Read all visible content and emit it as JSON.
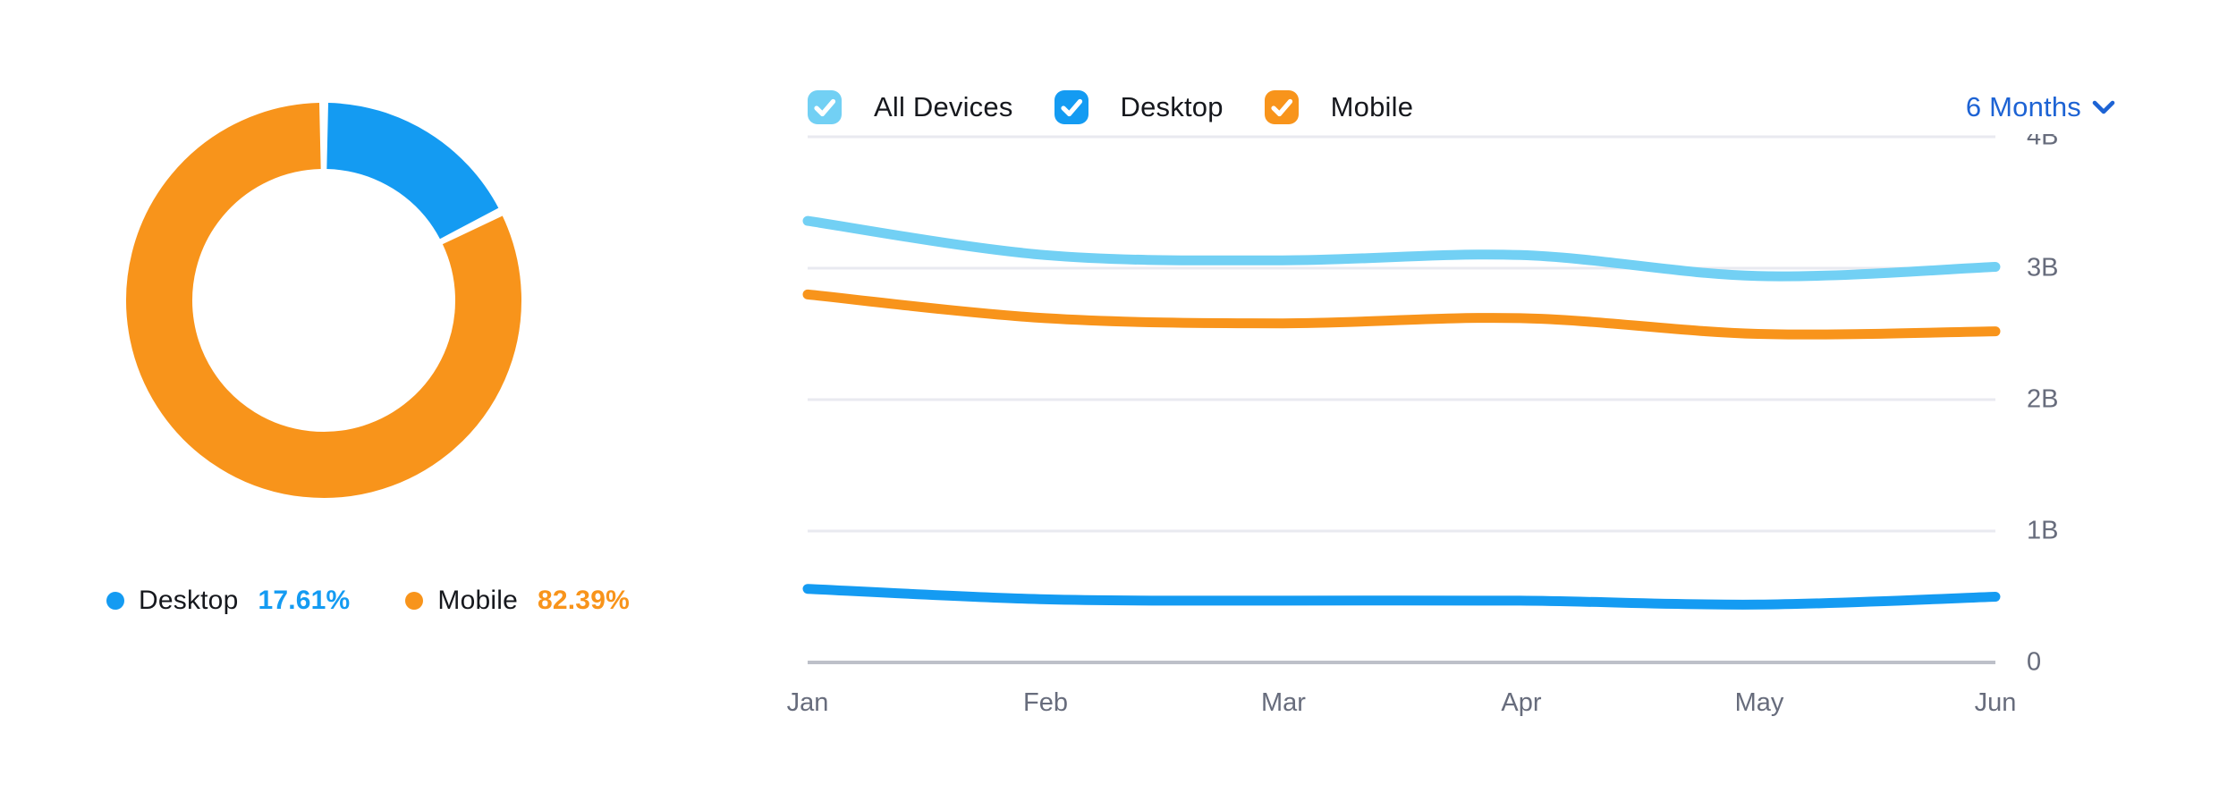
{
  "donut": {
    "legend": [
      {
        "label": "Desktop",
        "value": "17.61%"
      },
      {
        "label": "Mobile",
        "value": "82.39%"
      }
    ]
  },
  "toolbar": {
    "series_toggles": [
      {
        "label": "All Devices",
        "color": "#72d0f4",
        "checked": true
      },
      {
        "label": "Desktop",
        "color": "#149bf2",
        "checked": true
      },
      {
        "label": "Mobile",
        "color": "#f8941b",
        "checked": true
      }
    ],
    "range_selector": "6 Months"
  },
  "colors": {
    "all_devices": "#72d0f4",
    "desktop": "#149bf2",
    "mobile": "#f8941b",
    "link_blue": "#1d63d4"
  },
  "chart_data": [
    {
      "type": "pie",
      "donut": true,
      "labels": [
        "Desktop",
        "Mobile"
      ],
      "values": [
        17.61,
        82.39
      ],
      "unit": "%",
      "colors": [
        "#149bf2",
        "#f8941b"
      ],
      "start_angle_deg": 0,
      "direction": "clockwise"
    },
    {
      "type": "line",
      "categories": [
        "Jan",
        "Feb",
        "Mar",
        "Apr",
        "May",
        "Jun"
      ],
      "series": [
        {
          "name": "All Devices",
          "color": "#72d0f4",
          "values": [
            3.36,
            3.1,
            3.06,
            3.1,
            2.94,
            3.01
          ]
        },
        {
          "name": "Desktop",
          "color": "#149bf2",
          "values": [
            0.56,
            0.48,
            0.47,
            0.47,
            0.44,
            0.5
          ]
        },
        {
          "name": "Mobile",
          "color": "#f8941b",
          "values": [
            2.8,
            2.62,
            2.58,
            2.62,
            2.5,
            2.52
          ]
        }
      ],
      "unit": "B",
      "ylim": [
        0,
        4
      ],
      "ytick_labels": [
        "4B",
        "3B",
        "2B",
        "1B",
        "0"
      ],
      "grid": true,
      "legend_position": "top",
      "range_label": "6 Months"
    }
  ]
}
